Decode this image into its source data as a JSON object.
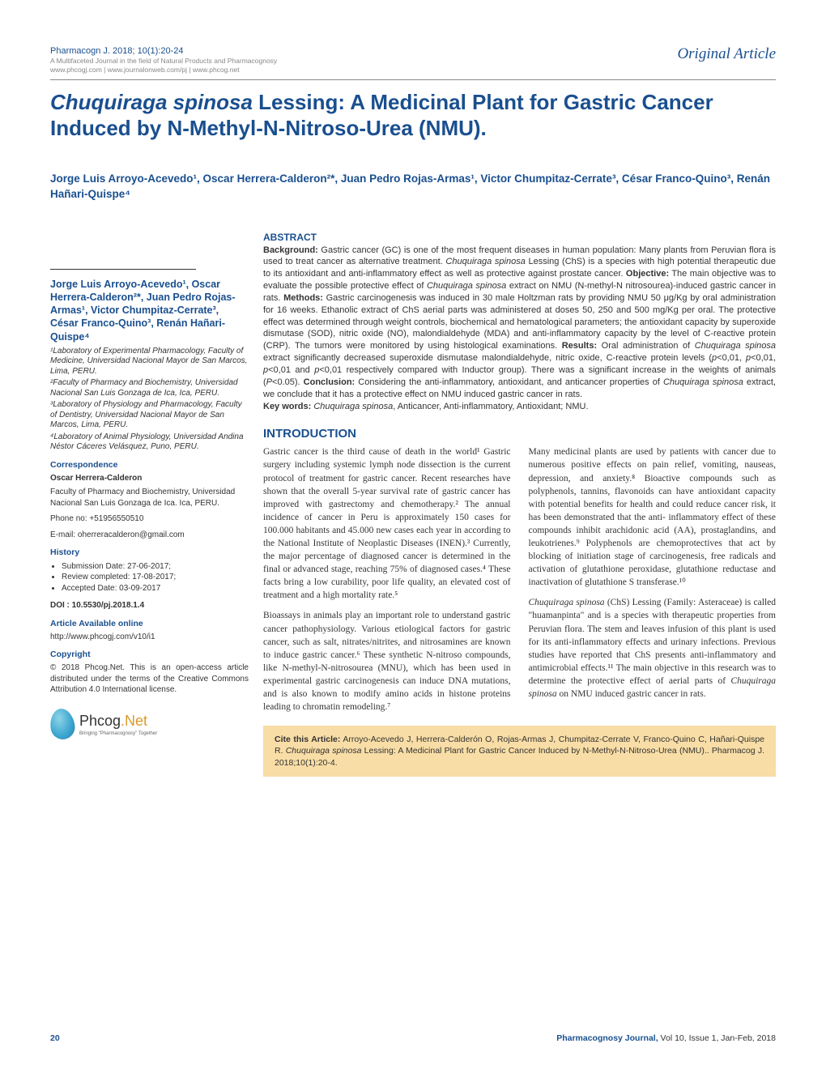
{
  "header": {
    "journal_ref": "Pharmacogn J. 2018; 10(1):20-24",
    "journal_desc": "A Multifaceted Journal in the field of Natural Products and Pharmacognosy",
    "journal_links": "www.phcogj.com | www.journalonweb.com/pj | www.phcog.net",
    "article_type": "Original Article"
  },
  "title_prefix": "Chuquiraga spinosa",
  "title_rest": " Lessing: A Medicinal Plant for Gastric Cancer Induced by N-Methyl-N-Nitroso-Urea (NMU).",
  "authors_line": "Jorge Luis Arroyo-Acevedo¹, Oscar Herrera-Calderon²*, Juan Pedro Rojas-Armas¹, Victor Chumpitaz-Cerrate³, César Franco-Quino³, Renán Hañari-Quispe⁴",
  "sidebar": {
    "authors_block": "Jorge Luis Arroyo-Acevedo¹, Oscar Herrera-Calderon²*, Juan Pedro Rojas-Armas¹, Victor Chumpitaz-Cerrate³, César Franco-Quino³, Renán Hañari-Quispe⁴",
    "affil1": "¹Laboratory of Experimental Pharmacology, Faculty of Medicine, Universidad Nacional Mayor de San Marcos, Lima, PERU.",
    "affil2": "²Faculty of Pharmacy and Biochemistry, Universidad Nacional San Luis Gonzaga de Ica, Ica, PERU.",
    "affil3": "³Laboratory of Physiology and Pharmacology, Faculty of Dentistry, Universidad Nacional Mayor de San Marcos, Lima, PERU.",
    "affil4": "⁴Laboratory of Animal Physiology, Universidad Andina Néstor Cáceres Velásquez, Puno, PERU.",
    "corr_head": "Correspondence",
    "corr_name": "Oscar Herrera-Calderon",
    "corr_addr": "Faculty of Pharmacy and Biochemistry, Universidad Nacional San Luis Gonzaga de Ica. Ica, PERU.",
    "phone": "Phone no: +51956550510",
    "email": "E-mail: oherreracalderon@gmail.com",
    "history_head": "History",
    "history_items": [
      "Submission Date: 27-06-2017;",
      "Review completed: 17-08-2017;",
      "Accepted Date: 03-09-2017"
    ],
    "doi_label": "DOI : ",
    "doi_value": "10.5530/pj.2018.1.4",
    "avail_head": "Article Available online",
    "avail_link": "http://www.phcogj.com/v10/i1",
    "copyright_head": "Copyright",
    "copyright_text": "© 2018 Phcog.Net. This is an open-access article distributed under the terms of the Creative Commons Attribution 4.0 International license.",
    "logo_text": "Phcog",
    "logo_net": ".Net",
    "logo_sub": "Bringing \"Pharmacognosy\" Together"
  },
  "abstract": {
    "head": "ABSTRACT",
    "body": "<b>Background:</b> Gastric cancer (GC) is one of the most frequent diseases in human population: Many plants from Peruvian flora is used to treat cancer as alternative treatment. <i>Chuquiraga spinosa</i> Lessing (ChS) is a species with high potential therapeutic due to its antioxidant and anti-inflammatory effect as well as protective against prostate cancer. <b>Objective:</b> The main objective was to evaluate the possible protective effect of <i>Chuquiraga spinosa</i> extract on NMU (N-methyl-N nitrosourea)-induced gastric cancer in rats. <b>Methods:</b> Gastric carcinogenesis was induced in 30 male Holtzman rats by providing NMU 50 μg/Kg by oral administration for 16 weeks. Ethanolic extract of ChS aerial parts was administered at doses 50, 250 and 500 mg/Kg per oral. The protective effect was determined through weight controls, biochemical and hematological parameters; the antioxidant capacity by superoxide dismutase (SOD), nitric oxide (NO), malondialdehyde (MDA) and anti-inflammatory capacity by the level of C-reactive protein (CRP). The tumors were monitored by using histological examinations. <b>Results:</b> Oral administration of <i>Chuquiraga spinosa</i> extract significantly decreased superoxide dismutase malondialdehyde, nitric oxide, C-reactive protein levels (<i>p</i><0,01, <i>p</i><0,01, <i>p</i><0,01 and <i>p</i><0,01 respectively compared with Inductor group). There was a significant increase in the weights of animals (<i>P</i><0.05). <b>Conclusion:</b> Considering the anti-inflammatory, antioxidant, and anticancer properties of <i>Chuquiraga spinosa</i> extract, we conclude that it has a protective effect on NMU induced gastric cancer in rats.",
    "keywords": "<b>Key words:</b> <i>Chuquiraga spinosa</i>, Anticancer, Anti-inflammatory, Antioxidant; NMU."
  },
  "intro": {
    "head": "INTRODUCTION",
    "p1": "Gastric cancer is the third cause of death in the world¹ Gastric surgery including systemic lymph node dissection is the current protocol of treatment for gastric cancer. Recent researches have shown that the overall 5-year survival rate of gastric cancer has improved with gastrectomy and chemotherapy.² The annual incidence of cancer in Peru is approximately 150 cases for 100.000 habitants and 45.000 new cases each year in according to the National Institute of Neoplastic Diseases (INEN).³ Currently, the major percentage of diagnosed cancer is determined in the final or advanced stage, reaching 75% of diagnosed cases.⁴ These facts bring a low curability, poor life quality, an elevated cost of treatment and a high mortality rate.⁵",
    "p2": "Bioassays in animals play an important role to understand gastric cancer pathophysiology. Various etiological factors for gastric cancer, such as salt, nitrates/nitrites, and nitrosamines are known to induce gastric cancer.⁶ These synthetic N-nitroso compounds, like N-methyl-N-nitrosourea (MNU), which has been used in experimental gastric carcinogenesis can induce DNA mutations, and is also known to modify amino acids in histone proteins leading to chromatin remodeling.⁷",
    "p3": "Many medicinal plants are used by patients with cancer due to numerous positive effects on pain relief, vomiting, nauseas, depression, and anxiety.⁸ Bioactive compounds such as polyphenols, tannins, flavonoids can have antioxidant capacity with potential benefits for health and could reduce cancer risk, it has been demonstrated that the anti- inflammatory effect of these compounds inhibit arachidonic acid (AA), prostaglandins, and leukotrienes.⁹ Polyphenols are chemoprotectives that act by blocking of initiation stage of carcinogenesis, free radicals and activation of glutathione peroxidase, glutathione reductase and inactivation of glutathione S transferase.¹⁰",
    "p4": "<i>Chuquiraga spinosa</i> (ChS) Lessing (Family: Asteraceae) is called \"huamanpinta\" and is a species with therapeutic properties from Peruvian flora. The stem and leaves infusion of this plant is used for its anti-inflammatory effects and urinary infections. Previous studies have reported that ChS presents anti-inflammatory and antimicrobial effects.¹¹ The main objective in this research was to determine the protective effect of aerial parts of <i>Chuquiraga spinosa</i> on NMU induced gastric cancer in rats."
  },
  "cite_box": "<b>Cite this Article:</b> Arroyo-Acevedo J, Herrera-Calderón O, Rojas-Armas J, Chumpitaz-Cerrate V, Franco-Quino C, Hañari-Quispe R. <i>Chuquiraga spinosa</i> Lessing: A Medicinal Plant for Gastric Cancer Induced by N-Methyl-N-Nitroso-Urea (NMU).. Pharmacog J. 2018;10(1):20-4.",
  "footer": {
    "page": "20",
    "jname": "Pharmacognosy Journal,",
    "rest": " Vol 10, Issue 1, Jan-Feb, 2018"
  },
  "colors": {
    "primary": "#1a4f8f",
    "citebox_bg": "#f8dda6",
    "muted": "#888888"
  }
}
